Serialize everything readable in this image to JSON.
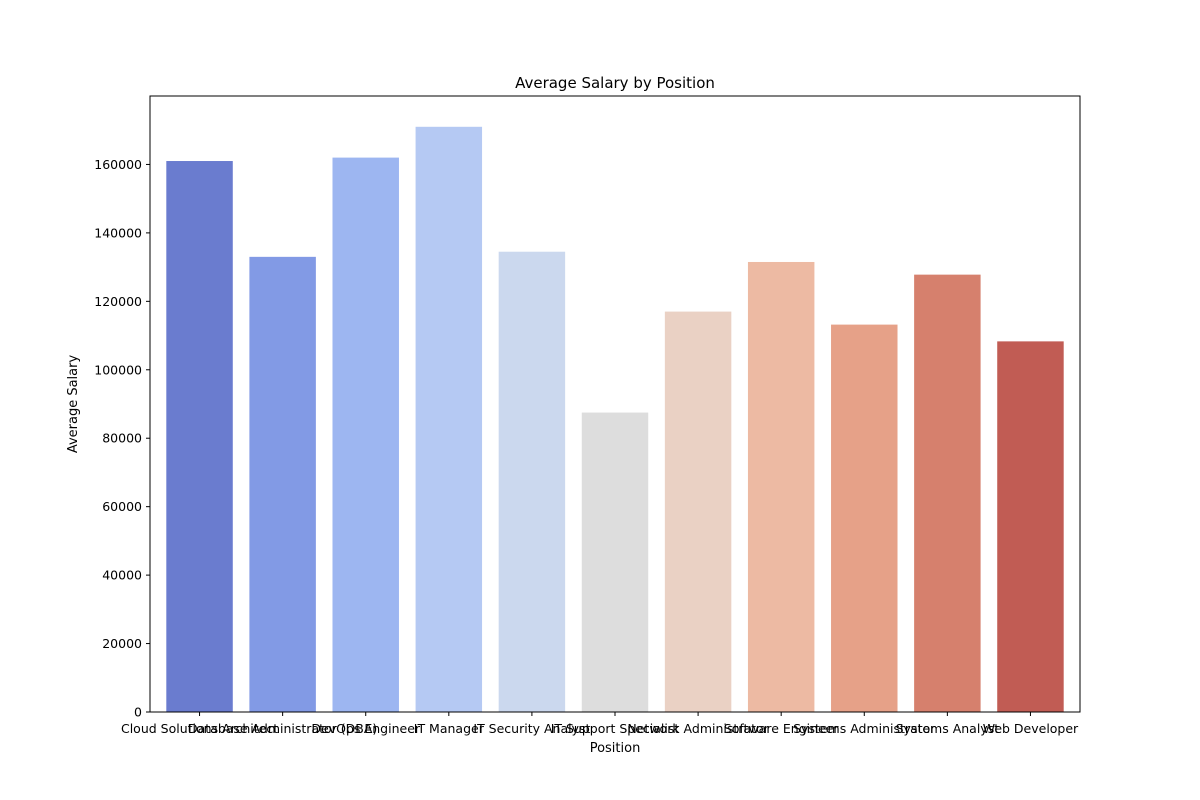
{
  "chart_data": {
    "type": "bar",
    "title": "Average Salary by Position",
    "xlabel": "Position",
    "ylabel": "Average Salary",
    "ylim": [
      0,
      180000
    ],
    "yticks": [
      0,
      20000,
      40000,
      60000,
      80000,
      100000,
      120000,
      140000,
      160000
    ],
    "grid": false,
    "categories": [
      "Cloud Solutions Architect",
      "Database Administrator (DBA)",
      "DevOps Engineer",
      "IT Manager",
      "IT Security Analyst",
      "IT Support Specialist",
      "Network Administrator",
      "Software Engineer",
      "Systems Administrator",
      "Systems Analyst",
      "Web Developer"
    ],
    "values": [
      161000,
      133000,
      162000,
      171000,
      134500,
      87500,
      117000,
      131500,
      113200,
      127800,
      108300
    ],
    "colors": [
      "#6a7ccf",
      "#829ae5",
      "#9db6f1",
      "#b5c9f3",
      "#cbd8ee",
      "#dddddd",
      "#ead1c4",
      "#edbaa3",
      "#e6a188",
      "#d6806d",
      "#c15c54"
    ]
  }
}
